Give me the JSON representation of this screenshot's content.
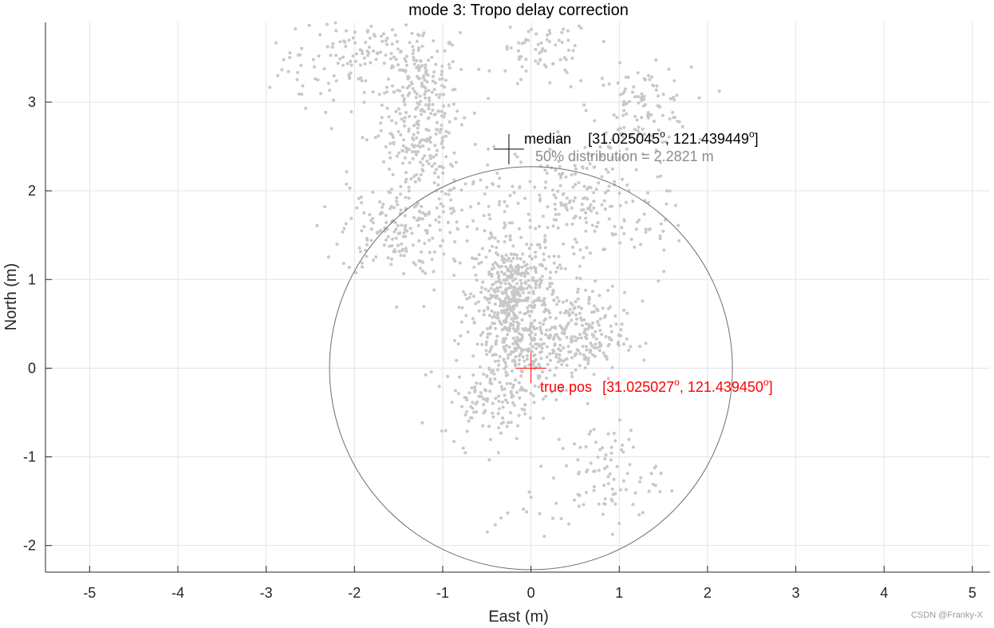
{
  "chart_data": {
    "type": "scatter",
    "title": "mode 3: Tropo delay correction",
    "xlabel": "East (m)",
    "ylabel": "North (m)",
    "xlim": [
      -5.5,
      5.2
    ],
    "ylim": [
      -2.3,
      3.9
    ],
    "xticks": [
      -5,
      -4,
      -3,
      -2,
      -1,
      0,
      1,
      2,
      3,
      4,
      5
    ],
    "yticks": [
      -2,
      -1,
      0,
      1,
      2,
      3
    ],
    "grid": true,
    "colors": {
      "points": "#c8c8c8",
      "circle": "#6e6e6e",
      "median": "#000000",
      "truepos": "#ff0000",
      "dist_text": "#8c8c8c",
      "grid": "#e3e3e3"
    },
    "clusters": [
      {
        "cx": -1.25,
        "cy": 3.0,
        "sx": 0.22,
        "sy": 0.45,
        "n": 260
      },
      {
        "cx": -1.9,
        "cy": 3.55,
        "sx": 0.35,
        "sy": 0.25,
        "n": 110
      },
      {
        "cx": -2.6,
        "cy": 3.3,
        "sx": 0.3,
        "sy": 0.25,
        "n": 25
      },
      {
        "cx": 0.15,
        "cy": 3.55,
        "sx": 0.28,
        "sy": 0.2,
        "n": 70
      },
      {
        "cx": 1.25,
        "cy": 2.95,
        "sx": 0.28,
        "sy": 0.22,
        "n": 110
      },
      {
        "cx": -1.15,
        "cy": 2.2,
        "sx": 0.45,
        "sy": 0.35,
        "n": 90
      },
      {
        "cx": -1.55,
        "cy": 1.55,
        "sx": 0.3,
        "sy": 0.25,
        "n": 150
      },
      {
        "cx": 0.55,
        "cy": 1.9,
        "sx": 0.35,
        "sy": 0.35,
        "n": 170
      },
      {
        "cx": 1.4,
        "cy": 1.7,
        "sx": 0.3,
        "sy": 0.3,
        "n": 30
      },
      {
        "cx": -0.25,
        "cy": 1.3,
        "sx": 0.45,
        "sy": 0.35,
        "n": 120
      },
      {
        "cx": -0.2,
        "cy": 0.85,
        "sx": 0.22,
        "sy": 0.28,
        "n": 340
      },
      {
        "cx": 0.5,
        "cy": 0.35,
        "sx": 0.28,
        "sy": 0.25,
        "n": 230
      },
      {
        "cx": -0.15,
        "cy": 0.25,
        "sx": 0.28,
        "sy": 0.3,
        "n": 200
      },
      {
        "cx": -0.45,
        "cy": -0.35,
        "sx": 0.28,
        "sy": 0.2,
        "n": 110
      },
      {
        "cx": 0.85,
        "cy": -1.2,
        "sx": 0.3,
        "sy": 0.3,
        "n": 90
      },
      {
        "cx": -0.4,
        "cy": -1.5,
        "sx": 0.4,
        "sy": 0.4,
        "n": 20
      }
    ],
    "circle": {
      "cx": 0,
      "cy": 0,
      "r": 2.2821
    },
    "median": {
      "x": -0.25,
      "y": 2.47,
      "label": "median",
      "coords_prefix": "[31.025045",
      "coords_mid": ", 121.439449",
      "coords_suffix": "]",
      "deg": "o",
      "dist_text": "50% distribution = 2.2821 m"
    },
    "truepos": {
      "x": 0,
      "y": 0,
      "label": "true pos",
      "coords_prefix": "[31.025027",
      "coords_mid": ", 121.439450",
      "coords_suffix": "]",
      "deg": "o"
    }
  },
  "watermark": "CSDN @Franky-X"
}
